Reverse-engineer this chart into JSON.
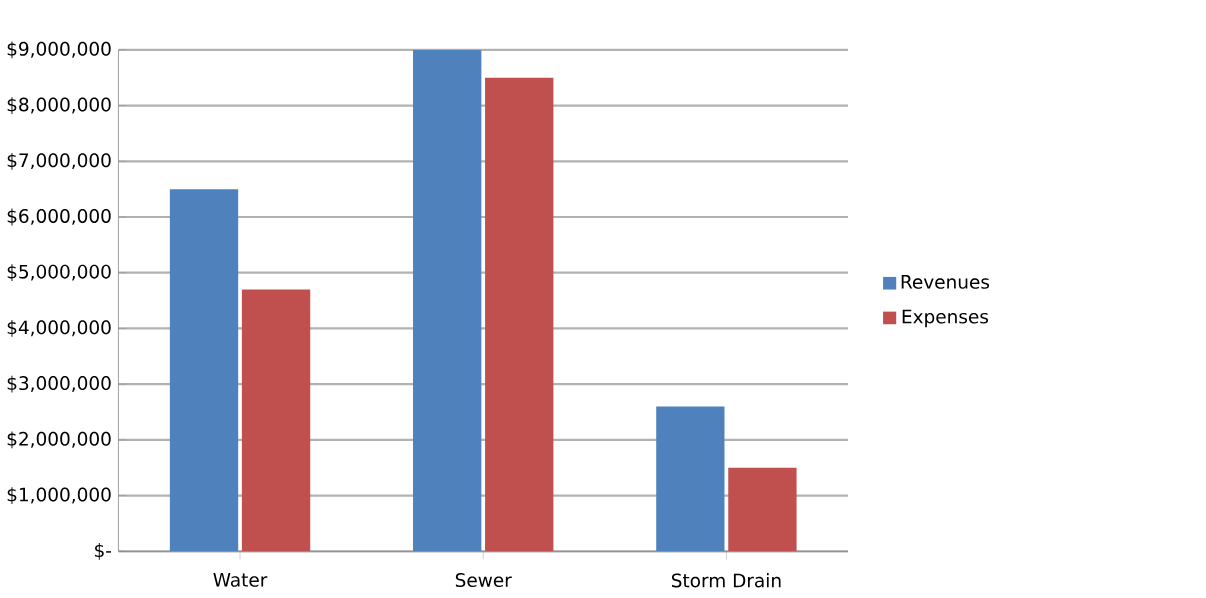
{
  "chart_data": {
    "type": "bar",
    "categories": [
      "Water",
      "Sewer",
      "Storm Drain"
    ],
    "series": [
      {
        "name": "Revenues",
        "color": "#4f81bd",
        "values": [
          6500000,
          9000000,
          2600000
        ]
      },
      {
        "name": "Expenses",
        "color": "#c0504d",
        "values": [
          4700000,
          8500000,
          1500000
        ]
      }
    ],
    "ylim": [
      0,
      9000000
    ],
    "yticks": [
      {
        "value": 0,
        "label": "$-"
      },
      {
        "value": 1000000,
        "label": "$1,000,000"
      },
      {
        "value": 2000000,
        "label": "$2,000,000"
      },
      {
        "value": 3000000,
        "label": "$3,000,000"
      },
      {
        "value": 4000000,
        "label": "$4,000,000"
      },
      {
        "value": 5000000,
        "label": "$5,000,000"
      },
      {
        "value": 6000000,
        "label": "$6,000,000"
      },
      {
        "value": 7000000,
        "label": "$7,000,000"
      },
      {
        "value": 8000000,
        "label": "$8,000,000"
      },
      {
        "value": 9000000,
        "label": "$9,000,000"
      }
    ],
    "grid": "y",
    "legend": "right"
  }
}
